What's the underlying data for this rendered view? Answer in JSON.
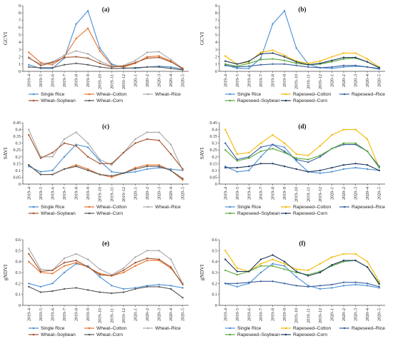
{
  "colors": {
    "Single Rice": "#4a8fd4",
    "Wheat–Cotton": "#e8702a",
    "Wheat–Rice": "#a8a8a8",
    "Wheat–Soybean": "#a0522d",
    "Wheat–Corn": "#555555",
    "Rapeseed–Cotton": "#f5b800",
    "Rapeseed–Rice": "#3a5f9e",
    "Rapeseed–Soybean": "#59a83b",
    "Rapeseed–Corn": "#1f3a5f"
  },
  "chart_data": [
    {
      "type": "line",
      "title": "(a)",
      "ylabel": "GCVI",
      "ylim": [
        0,
        9
      ],
      "yticks": [
        "0",
        "1",
        "2",
        "3",
        "4",
        "5",
        "6",
        "7",
        "8",
        "9"
      ],
      "categories": [
        "2019–4",
        "2019–5",
        "2019–6",
        "2019–7",
        "2019–8",
        "2019–9",
        "2019–10",
        "2019–11",
        "2019–12",
        "2020–1",
        "2020–2",
        "2020–3",
        "2020–4",
        "2020–5"
      ],
      "series": [
        {
          "name": "Single Rice",
          "values": [
            0.9,
            0.4,
            0.4,
            1.8,
            6.5,
            8.3,
            3.2,
            1.0,
            0.5,
            0.4,
            0.6,
            0.7,
            0.6,
            0.3
          ]
        },
        {
          "name": "Wheat–Cotton",
          "values": [
            2.6,
            1.2,
            0.9,
            2.0,
            4.5,
            5.9,
            2.8,
            0.8,
            0.6,
            1.1,
            2.0,
            2.1,
            1.4,
            0.3
          ]
        },
        {
          "name": "Wheat–Rice",
          "values": [
            1.8,
            1.0,
            1.3,
            2.2,
            2.8,
            2.4,
            1.4,
            0.7,
            0.8,
            1.5,
            2.6,
            2.7,
            1.6,
            0.4
          ]
        },
        {
          "name": "Wheat–Soybean",
          "values": [
            1.9,
            0.8,
            1.2,
            1.9,
            2.0,
            1.8,
            1.1,
            0.6,
            0.7,
            1.2,
            1.8,
            1.9,
            1.3,
            0.4
          ]
        },
        {
          "name": "Wheat–Corn",
          "values": [
            0.6,
            0.5,
            0.5,
            0.9,
            1.1,
            0.9,
            0.6,
            0.4,
            0.4,
            0.5,
            0.6,
            0.6,
            0.4,
            0.2
          ]
        }
      ],
      "legend": [
        "Single Rice",
        "Wheat–Cotton",
        "Wheat–Rice",
        "Wheat–Soybean",
        "Wheat–Corn"
      ]
    },
    {
      "type": "line",
      "title": "(b)",
      "ylabel": "GCVI",
      "ylim": [
        0,
        9
      ],
      "yticks": [
        "0",
        "1",
        "2",
        "3",
        "4",
        "5",
        "6",
        "7",
        "8",
        "9"
      ],
      "categories": [
        "2019–4",
        "2019–5",
        "2019–6",
        "2019–7",
        "2019–8",
        "2019–9",
        "2019–10",
        "2019–11",
        "2019–12",
        "2020–1",
        "2020–2",
        "2020–3",
        "2020–4",
        "2020–5"
      ],
      "series": [
        {
          "name": "Single Rice",
          "values": [
            0.9,
            0.4,
            0.4,
            1.8,
            6.5,
            8.3,
            3.2,
            1.0,
            0.5,
            0.4,
            0.6,
            0.7,
            0.6,
            0.3
          ]
        },
        {
          "name": "Rapeseed–Cotton",
          "values": [
            2.1,
            1.0,
            1.3,
            2.6,
            2.9,
            2.2,
            1.4,
            1.1,
            1.4,
            2.0,
            2.5,
            2.5,
            1.7,
            0.6
          ]
        },
        {
          "name": "Rapeseed–Rice",
          "values": [
            0.8,
            0.6,
            0.7,
            0.9,
            1.0,
            1.0,
            0.8,
            0.6,
            0.5,
            0.6,
            0.8,
            0.8,
            0.6,
            0.4
          ]
        },
        {
          "name": "Rapeseed–Soybean",
          "values": [
            1.0,
            0.7,
            1.1,
            1.6,
            1.7,
            1.5,
            1.1,
            0.9,
            1.0,
            1.3,
            1.7,
            1.8,
            1.3,
            0.5
          ]
        },
        {
          "name": "Rapeseed–Corn",
          "values": [
            1.4,
            1.0,
            1.4,
            2.4,
            2.5,
            2.0,
            1.3,
            0.9,
            1.1,
            1.5,
            1.9,
            1.9,
            1.3,
            0.5
          ]
        }
      ],
      "legend": [
        "Single Rice",
        "Rapeseed–Cotton",
        "Rapeseed–Rice",
        "Rapeseed–Soybean",
        "Rapeseed–Corn"
      ]
    },
    {
      "type": "line",
      "title": "(c)",
      "ylabel": "SAVI",
      "ylim": [
        0,
        0.45
      ],
      "yticks": [
        "0",
        "0.05",
        "0.1",
        "0.15",
        "0.2",
        "0.25",
        "0.3",
        "0.35",
        "0.4",
        "0.45"
      ],
      "categories": [
        "2019–4",
        "2019–5",
        "2019–6",
        "2019–7",
        "2019–8",
        "2019–9",
        "2019–10",
        "2019–11",
        "2019–12",
        "2020–1",
        "2020–2",
        "2020–3",
        "2020–4",
        "2020–5"
      ],
      "series": [
        {
          "name": "Single Rice",
          "values": [
            0.13,
            0.09,
            0.1,
            0.2,
            0.29,
            0.27,
            0.17,
            0.09,
            0.08,
            0.09,
            0.11,
            0.12,
            0.11,
            0.1
          ]
        },
        {
          "name": "Wheat–Cotton",
          "values": [
            0.14,
            0.07,
            0.07,
            0.11,
            0.14,
            0.11,
            0.07,
            0.05,
            0.08,
            0.12,
            0.14,
            0.14,
            0.1,
            0.03
          ]
        },
        {
          "name": "Wheat–Rice",
          "values": [
            0.4,
            0.2,
            0.2,
            0.33,
            0.38,
            0.3,
            0.18,
            0.14,
            0.23,
            0.33,
            0.38,
            0.38,
            0.29,
            0.1
          ]
        },
        {
          "name": "Wheat–Soybean",
          "values": [
            0.36,
            0.19,
            0.23,
            0.3,
            0.28,
            0.2,
            0.15,
            0.15,
            0.23,
            0.3,
            0.33,
            0.32,
            0.22,
            0.11
          ]
        },
        {
          "name": "Wheat–Corn",
          "values": [
            0.14,
            0.07,
            0.07,
            0.11,
            0.13,
            0.1,
            0.07,
            0.06,
            0.08,
            0.11,
            0.13,
            0.13,
            0.1,
            0.04
          ]
        }
      ],
      "legend": [
        "Single Rice",
        "Wheat–Cotton",
        "Wheat–Rice",
        "Wheat–Soybean",
        "Wheat–Corn"
      ]
    },
    {
      "type": "line",
      "title": "(d)",
      "ylabel": "SAVI",
      "ylim": [
        0,
        0.45
      ],
      "yticks": [
        "0",
        "0.05",
        "0.1",
        "0.15",
        "0.2",
        "0.25",
        "0.3",
        "0.35",
        "0.4",
        "0.45"
      ],
      "categories": [
        "2019–4",
        "2019–5",
        "2019–6",
        "2019–7",
        "2019–8",
        "2019–9",
        "2019–10",
        "2019–11",
        "2019–12",
        "2020–1",
        "2020–2",
        "2020–3",
        "2020–4",
        "2020–5"
      ],
      "series": [
        {
          "name": "Single Rice",
          "values": [
            0.13,
            0.09,
            0.1,
            0.2,
            0.29,
            0.27,
            0.17,
            0.09,
            0.08,
            0.09,
            0.11,
            0.12,
            0.11,
            0.1
          ]
        },
        {
          "name": "Rapeseed–Cotton",
          "values": [
            0.4,
            0.22,
            0.23,
            0.3,
            0.36,
            0.3,
            0.22,
            0.21,
            0.28,
            0.36,
            0.4,
            0.4,
            0.33,
            0.12
          ]
        },
        {
          "name": "Rapeseed–Rice",
          "values": [
            0.3,
            0.18,
            0.2,
            0.27,
            0.29,
            0.24,
            0.18,
            0.16,
            0.2,
            0.26,
            0.29,
            0.29,
            0.24,
            0.13
          ]
        },
        {
          "name": "Rapeseed–Soybean",
          "values": [
            0.25,
            0.17,
            0.19,
            0.24,
            0.26,
            0.23,
            0.19,
            0.18,
            0.21,
            0.26,
            0.3,
            0.3,
            0.24,
            0.12
          ]
        },
        {
          "name": "Rapeseed–Corn",
          "values": [
            0.12,
            0.12,
            0.13,
            0.15,
            0.15,
            0.13,
            0.11,
            0.09,
            0.1,
            0.12,
            0.14,
            0.15,
            0.14,
            0.1
          ]
        }
      ],
      "legend": [
        "Single Rice",
        "Rapeseed–Cotton",
        "Rapeseed–Rice",
        "Rapeseed–Soybean",
        "Rapeseed–Corn"
      ]
    },
    {
      "type": "line",
      "title": "(e)",
      "ylabel": "gNDVI",
      "ylim": [
        0,
        0.6
      ],
      "yticks": [
        "0",
        "0.1",
        "0.2",
        "0.3",
        "0.4",
        "0.5",
        "0.6"
      ],
      "categories": [
        "2019–4",
        "2019–5",
        "2019–6",
        "2019–7",
        "2019–8",
        "2019–9",
        "2019–10",
        "2019–11",
        "2019–12",
        "2020–1",
        "2020–2",
        "2020–3",
        "2020–4",
        "2020–5"
      ],
      "series": [
        {
          "name": "Single Rice",
          "values": [
            0.2,
            0.17,
            0.2,
            0.3,
            0.38,
            0.36,
            0.26,
            0.18,
            0.15,
            0.16,
            0.18,
            0.19,
            0.18,
            0.16
          ]
        },
        {
          "name": "Wheat–Cotton",
          "values": [
            0.4,
            0.3,
            0.29,
            0.36,
            0.39,
            0.35,
            0.29,
            0.27,
            0.3,
            0.36,
            0.41,
            0.41,
            0.34,
            0.2
          ]
        },
        {
          "name": "Wheat–Rice",
          "values": [
            0.52,
            0.33,
            0.32,
            0.43,
            0.47,
            0.42,
            0.33,
            0.28,
            0.34,
            0.44,
            0.5,
            0.5,
            0.42,
            0.2
          ]
        },
        {
          "name": "Wheat–Soybean",
          "values": [
            0.47,
            0.31,
            0.32,
            0.39,
            0.41,
            0.35,
            0.28,
            0.27,
            0.32,
            0.39,
            0.43,
            0.42,
            0.35,
            0.19
          ]
        },
        {
          "name": "Wheat–Corn",
          "values": [
            0.17,
            0.12,
            0.13,
            0.15,
            0.16,
            0.14,
            0.12,
            0.11,
            0.12,
            0.15,
            0.17,
            0.17,
            0.15,
            0.07
          ]
        }
      ],
      "legend": [
        "Single Rice",
        "Wheat–Cotton",
        "Wheat–Rice",
        "Wheat–Soybean",
        "Wheat–Corn"
      ]
    },
    {
      "type": "line",
      "title": "(f)",
      "ylabel": "gNDVI",
      "ylim": [
        0,
        0.6
      ],
      "yticks": [
        "0",
        "0.1",
        "0.2",
        "0.3",
        "0.4",
        "0.5",
        "0.6"
      ],
      "categories": [
        "2019–4",
        "2019–5",
        "2019–6",
        "2019–7",
        "2019–8",
        "2019–9",
        "2019–10",
        "2019–11",
        "2019–12",
        "2020–1",
        "2020–2",
        "2020–3",
        "2020–4",
        "2020–5"
      ],
      "series": [
        {
          "name": "Single Rice",
          "values": [
            0.2,
            0.17,
            0.2,
            0.3,
            0.38,
            0.36,
            0.26,
            0.18,
            0.15,
            0.16,
            0.18,
            0.19,
            0.18,
            0.16
          ]
        },
        {
          "name": "Rapeseed–Cotton",
          "values": [
            0.5,
            0.34,
            0.31,
            0.38,
            0.42,
            0.38,
            0.33,
            0.32,
            0.38,
            0.44,
            0.47,
            0.47,
            0.4,
            0.22
          ]
        },
        {
          "name": "Rapeseed–Rice",
          "values": [
            0.2,
            0.2,
            0.21,
            0.22,
            0.22,
            0.2,
            0.18,
            0.17,
            0.18,
            0.19,
            0.21,
            0.21,
            0.2,
            0.17
          ]
        },
        {
          "name": "Rapeseed–Soybean",
          "values": [
            0.32,
            0.28,
            0.31,
            0.36,
            0.36,
            0.33,
            0.3,
            0.28,
            0.31,
            0.36,
            0.4,
            0.41,
            0.35,
            0.19
          ]
        },
        {
          "name": "Rapeseed–Corn",
          "values": [
            0.42,
            0.31,
            0.31,
            0.42,
            0.46,
            0.4,
            0.31,
            0.27,
            0.3,
            0.37,
            0.41,
            0.41,
            0.35,
            0.2
          ]
        }
      ],
      "legend": [
        "Single Rice",
        "Rapeseed–Cotton",
        "Rapeseed–Rice",
        "Rapeseed–Soybean",
        "Rapeseed–Corn"
      ]
    }
  ]
}
